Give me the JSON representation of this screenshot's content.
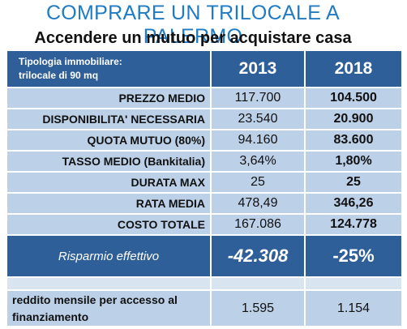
{
  "header": {
    "title": "COMPRARE UN TRILOCALE A PALERMO",
    "subtitle": "Accendere un mutuo per acquistare casa"
  },
  "table": {
    "header": {
      "label": [
        "Tipologia immobiliare:",
        "trilocale di 90 mq"
      ],
      "years": [
        "2013",
        "2018"
      ]
    },
    "rows": [
      [
        "PREZZO MEDIO",
        "117.700",
        "104.500"
      ],
      [
        "DISPONIBILITA' NECESSARIA",
        "23.540",
        "20.900"
      ],
      [
        "QUOTA MUTUO (80%)",
        "94.160",
        "83.600"
      ],
      [
        "TASSO MEDIO (Bankitalia)",
        "3,64%",
        "1,80%"
      ],
      [
        "DURATA MAX",
        "25",
        "25"
      ],
      [
        "RATA MEDIA",
        "478,49",
        "346,26"
      ],
      [
        "COSTO TOTALE",
        "167.086",
        "124.778"
      ]
    ],
    "summary": [
      "Risparmio effettivo",
      "-42.308",
      "-25%"
    ],
    "footer": [
      "reddito mensile per accesso al finanziamento",
      "1.595",
      "1.154"
    ]
  }
}
